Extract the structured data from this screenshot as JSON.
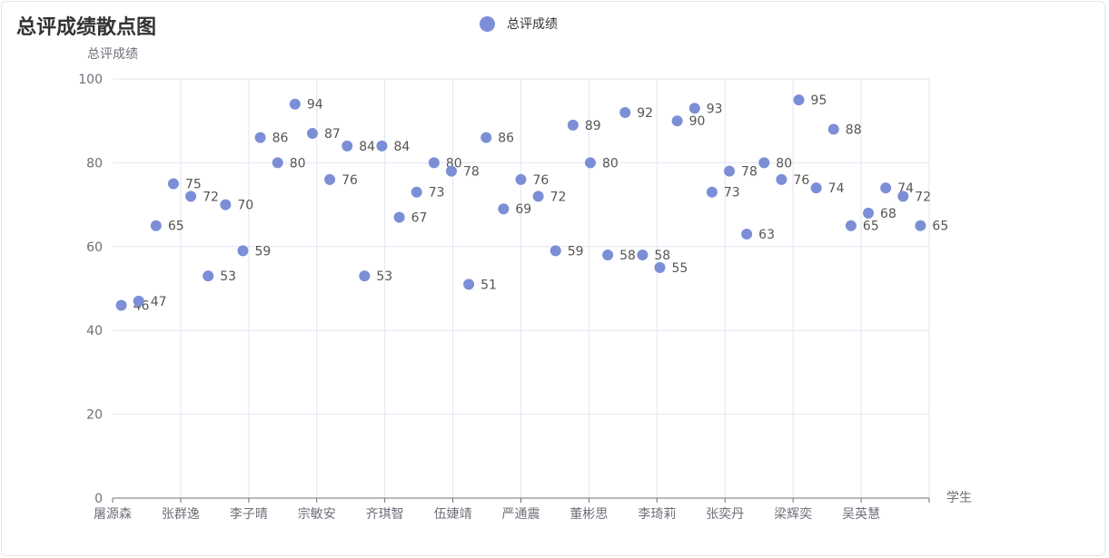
{
  "chart_data": {
    "type": "scatter",
    "title": "总评成绩散点图",
    "legend": [
      "总评成绩"
    ],
    "legend_position": "top-center",
    "ylabel": "总评成绩",
    "xlabel": "学生",
    "ylim": [
      0,
      100
    ],
    "yticks": [
      0,
      20,
      40,
      60,
      80,
      100
    ],
    "grid": true,
    "point_color": "#7b8ed6",
    "x_tick_labels": [
      "屠源森",
      "张群逸",
      "李子晴",
      "宗敏安",
      "齐琪智",
      "伍婕靖",
      "严通震",
      "董彬思",
      "李琦莉",
      "张奕丹",
      "梁辉奕",
      "吴英慧"
    ],
    "series": [
      {
        "name": "总评成绩",
        "values": [
          46,
          47,
          65,
          75,
          72,
          53,
          70,
          59,
          86,
          80,
          94,
          87,
          76,
          84,
          53,
          84,
          67,
          73,
          80,
          78,
          51,
          86,
          69,
          76,
          72,
          59,
          89,
          80,
          58,
          92,
          58,
          55,
          90,
          93,
          73,
          78,
          63,
          80,
          76,
          95,
          74,
          88,
          65,
          68,
          74,
          72,
          65
        ]
      }
    ]
  }
}
